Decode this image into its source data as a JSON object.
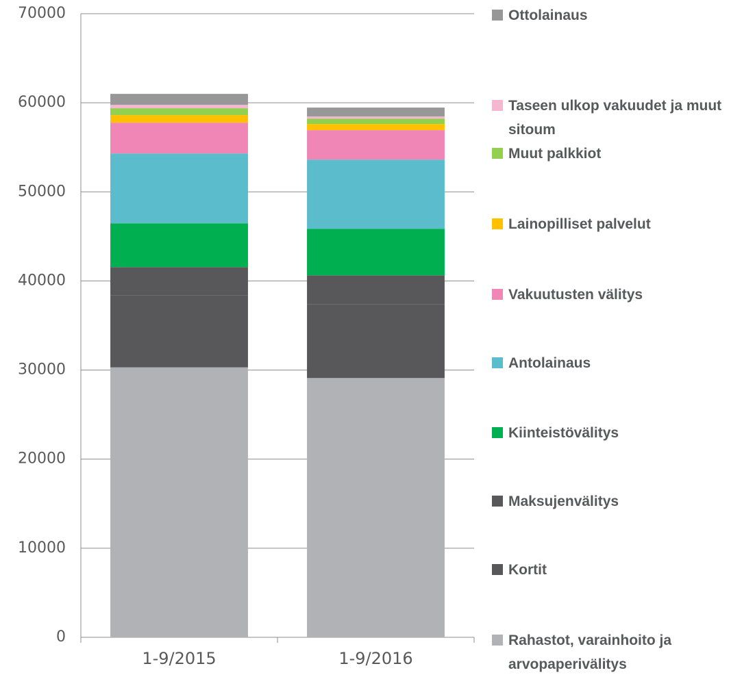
{
  "chart_data": {
    "type": "stacked_bar",
    "categories": [
      "1-9/2015",
      "1-9/2016"
    ],
    "series": [
      {
        "name": "Rahastot, varainhoito ja arvopaperivälitys",
        "color": "#b1b2b6",
        "values": [
          30300,
          29100
        ]
      },
      {
        "name": "Kortit",
        "color": "#58585a",
        "values": [
          8100,
          8300
        ]
      },
      {
        "name": "Maksujenvälitys",
        "color": "#58585a",
        "values": [
          3150,
          3230
        ]
      },
      {
        "name": "Kiinteistövälitys",
        "color": "#00b050",
        "values": [
          4920,
          5230
        ]
      },
      {
        "name": "Antolainaus",
        "color": "#5bbccc",
        "values": [
          7840,
          7760
        ]
      },
      {
        "name": "Vakuutusten välitys",
        "color": "#ef86b5",
        "values": [
          3460,
          3310
        ]
      },
      {
        "name": "Lainopilliset palvelut",
        "color": "#ffc000",
        "values": [
          850,
          690
        ]
      },
      {
        "name": "Muut palkkiot",
        "color": "#92d050",
        "values": [
          770,
          610
        ]
      },
      {
        "name": "Taseen ulkop vakuudet ja muut sitoum",
        "color": "#f4b6d0",
        "values": [
          380,
          230
        ]
      },
      {
        "name": "Ottolainaus",
        "color": "#979797",
        "values": [
          1230,
          1000
        ]
      }
    ],
    "ylim": [
      0,
      70000
    ],
    "yticks": [
      0,
      10000,
      20000,
      30000,
      40000,
      50000,
      60000,
      70000
    ],
    "grid": true
  }
}
